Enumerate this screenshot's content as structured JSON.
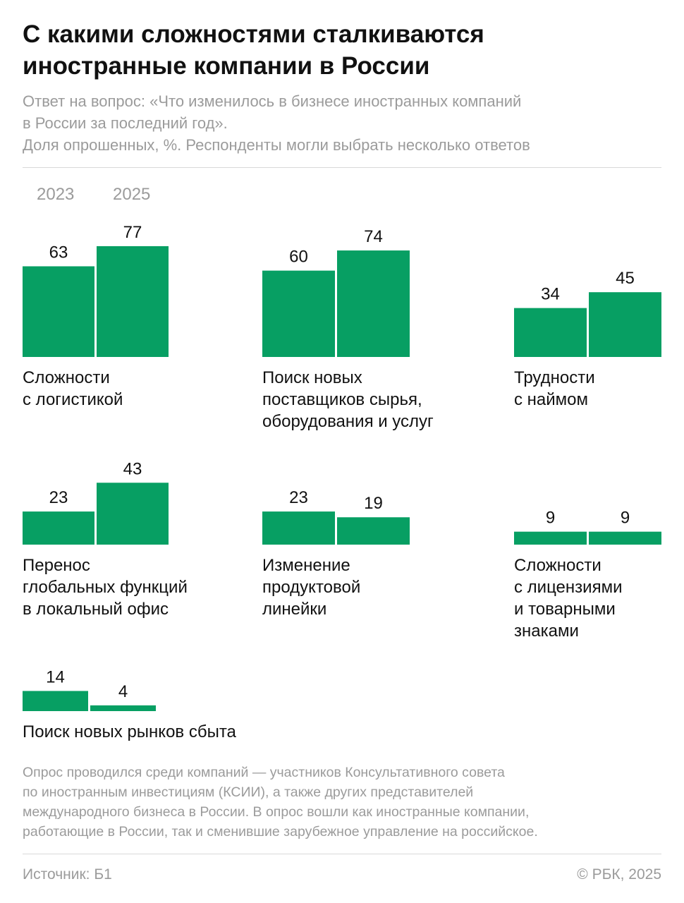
{
  "title_lines": [
    "С какими сложностями сталкиваются",
    "иностранные компании в России"
  ],
  "subtitle_lines": [
    "Ответ на вопрос: «Что изменилось в бизнесе иностранных компаний",
    "в России за последний год».",
    "Доля опрошенных, %. Респонденты могли выбрать несколько ответов"
  ],
  "legend": [
    "2023",
    "2025"
  ],
  "colors": {
    "bar": "#079f63",
    "text": "#111111",
    "muted": "#9b9b9b"
  },
  "chart_data": {
    "type": "bar",
    "unit": "%",
    "series_names": [
      "2023",
      "2025"
    ],
    "categories": [
      {
        "label": [
          "Сложности",
          "с логистикой"
        ],
        "values": [
          63,
          77
        ]
      },
      {
        "label": [
          "Поиск новых",
          "поставщиков сырья,",
          "оборудования и услуг"
        ],
        "values": [
          60,
          74
        ]
      },
      {
        "label": [
          "Трудности",
          "с наймом"
        ],
        "values": [
          34,
          45
        ]
      },
      {
        "label": [
          "Перенос",
          "глобальных функций",
          "в локальный офис"
        ],
        "values": [
          23,
          43
        ]
      },
      {
        "label": [
          "Изменение",
          "продуктовой",
          "линейки"
        ],
        "values": [
          23,
          19
        ]
      },
      {
        "label": [
          "Сложности",
          "с лицензиями",
          "и товарными",
          "знаками"
        ],
        "values": [
          9,
          9
        ]
      },
      {
        "label": [
          "Поиск новых рынков сбыта"
        ],
        "values": [
          14,
          4
        ]
      }
    ]
  },
  "note_lines": [
    "Опрос проводился среди компаний — участников Консультативного совета",
    "по иностранным инвестициям (КСИИ), а также других представителей",
    "международного бизнеса в России. В опрос вошли как иностранные компании,",
    "работающие в России, так и сменившие зарубежное управление на российское."
  ],
  "footer": {
    "source": "Источник: Б1",
    "copyright": "© РБК, 2025"
  }
}
